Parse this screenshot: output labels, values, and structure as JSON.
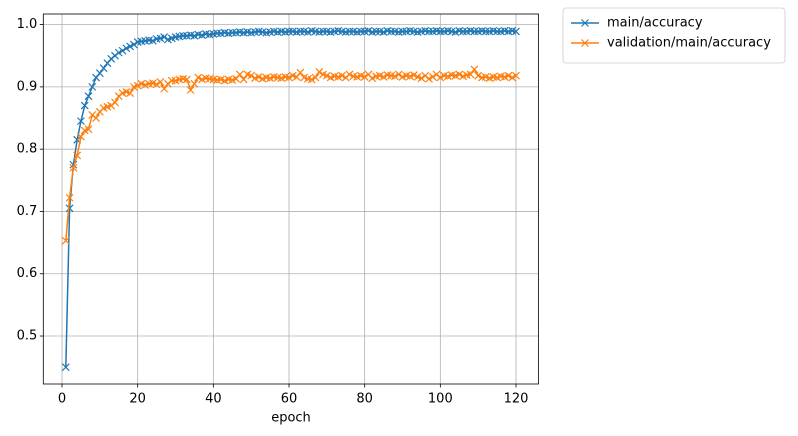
{
  "chart_data": {
    "type": "line",
    "x_label": "epoch",
    "x": [
      1,
      2,
      3,
      4,
      5,
      6,
      7,
      8,
      9,
      10,
      11,
      12,
      13,
      14,
      15,
      16,
      17,
      18,
      19,
      20,
      21,
      22,
      23,
      24,
      25,
      26,
      27,
      28,
      29,
      30,
      31,
      32,
      33,
      34,
      35,
      36,
      37,
      38,
      39,
      40,
      41,
      42,
      43,
      44,
      45,
      46,
      47,
      48,
      49,
      50,
      51,
      52,
      53,
      54,
      55,
      56,
      57,
      58,
      59,
      60,
      61,
      62,
      63,
      64,
      65,
      66,
      67,
      68,
      69,
      70,
      71,
      72,
      73,
      74,
      75,
      76,
      77,
      78,
      79,
      80,
      81,
      82,
      83,
      84,
      85,
      86,
      87,
      88,
      89,
      90,
      91,
      92,
      93,
      94,
      95,
      96,
      97,
      98,
      99,
      100,
      101,
      102,
      103,
      104,
      105,
      106,
      107,
      108,
      109,
      110,
      111,
      112,
      113,
      114,
      115,
      116,
      117,
      118,
      119,
      120
    ],
    "series": [
      {
        "name": "main/accuracy",
        "color": "#1f77b4",
        "values": [
          0.45,
          0.705,
          0.775,
          0.815,
          0.845,
          0.87,
          0.885,
          0.9,
          0.915,
          0.922,
          0.93,
          0.938,
          0.945,
          0.95,
          0.955,
          0.958,
          0.962,
          0.965,
          0.968,
          0.972,
          0.973,
          0.974,
          0.975,
          0.974,
          0.977,
          0.978,
          0.98,
          0.976,
          0.978,
          0.98,
          0.981,
          0.982,
          0.982,
          0.983,
          0.982,
          0.984,
          0.983,
          0.985,
          0.984,
          0.985,
          0.986,
          0.986,
          0.987,
          0.986,
          0.987,
          0.987,
          0.988,
          0.987,
          0.988,
          0.987,
          0.988,
          0.989,
          0.988,
          0.987,
          0.988,
          0.989,
          0.988,
          0.989,
          0.988,
          0.989,
          0.989,
          0.988,
          0.989,
          0.989,
          0.988,
          0.99,
          0.989,
          0.988,
          0.989,
          0.989,
          0.988,
          0.989,
          0.99,
          0.989,
          0.988,
          0.989,
          0.989,
          0.988,
          0.989,
          0.989,
          0.99,
          0.988,
          0.989,
          0.989,
          0.988,
          0.99,
          0.989,
          0.989,
          0.988,
          0.989,
          0.989,
          0.99,
          0.989,
          0.988,
          0.989,
          0.99,
          0.989,
          0.989,
          0.99,
          0.989,
          0.989,
          0.99,
          0.989,
          0.988,
          0.99,
          0.989,
          0.989,
          0.99,
          0.989,
          0.989,
          0.99,
          0.989,
          0.989,
          0.99,
          0.989,
          0.989,
          0.99,
          0.989,
          0.99,
          0.989
        ]
      },
      {
        "name": "validation/main/accuracy",
        "color": "#ff7f0e",
        "values": [
          0.653,
          0.722,
          0.77,
          0.79,
          0.82,
          0.83,
          0.832,
          0.855,
          0.85,
          0.86,
          0.866,
          0.868,
          0.87,
          0.875,
          0.885,
          0.89,
          0.892,
          0.89,
          0.9,
          0.902,
          0.905,
          0.903,
          0.905,
          0.906,
          0.904,
          0.908,
          0.897,
          0.905,
          0.91,
          0.91,
          0.912,
          0.913,
          0.912,
          0.895,
          0.905,
          0.915,
          0.912,
          0.914,
          0.913,
          0.912,
          0.911,
          0.912,
          0.91,
          0.912,
          0.911,
          0.913,
          0.92,
          0.912,
          0.92,
          0.918,
          0.914,
          0.916,
          0.913,
          0.915,
          0.914,
          0.916,
          0.915,
          0.914,
          0.916,
          0.915,
          0.918,
          0.916,
          0.923,
          0.915,
          0.913,
          0.912,
          0.915,
          0.924,
          0.92,
          0.918,
          0.915,
          0.917,
          0.916,
          0.918,
          0.915,
          0.92,
          0.917,
          0.916,
          0.918,
          0.916,
          0.92,
          0.914,
          0.917,
          0.918,
          0.916,
          0.919,
          0.918,
          0.917,
          0.92,
          0.916,
          0.918,
          0.917,
          0.919,
          0.916,
          0.914,
          0.918,
          0.913,
          0.916,
          0.92,
          0.915,
          0.918,
          0.917,
          0.919,
          0.918,
          0.92,
          0.917,
          0.919,
          0.92,
          0.928,
          0.918,
          0.915,
          0.916,
          0.914,
          0.916,
          0.915,
          0.917,
          0.916,
          0.918,
          0.915,
          0.918
        ]
      }
    ],
    "xlim": [
      -4.95,
      125.95
    ],
    "ylim": [
      0.423,
      1.017
    ],
    "xticks": [
      0,
      20,
      40,
      60,
      80,
      100,
      120
    ],
    "yticks": [
      0.5,
      0.6,
      0.7,
      0.8,
      0.9,
      {
        "value": 1,
        "label": "1.0"
      }
    ],
    "grid": true,
    "legend": "outside-upper-right"
  }
}
